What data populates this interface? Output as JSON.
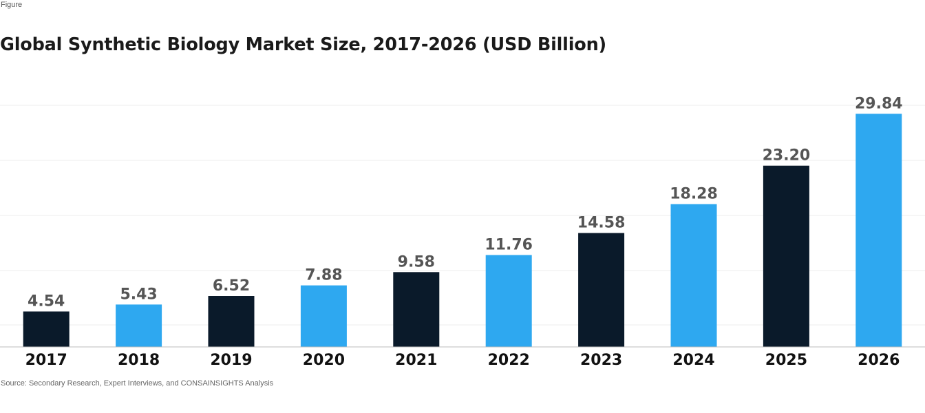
{
  "figure_label": "Figure",
  "source_note": "Source: Secondary Research, Expert Interviews, and CONSAINSIGHTS Analysis",
  "colors": {
    "light_blue": "#2ea8f0",
    "dark_navy": "#0a1a2a",
    "value_label": "#555555",
    "axis_label": "#111111",
    "grid": "#eeeeee",
    "baseline": "#bbbbbb"
  },
  "chart_data": {
    "type": "bar",
    "title": "Global Synthetic Biology Market Size, 2017-2026 (USD Billion)",
    "xlabel": "",
    "ylabel": "",
    "categories": [
      "2017",
      "2018",
      "2019",
      "2020",
      "2021",
      "2022",
      "2023",
      "2024",
      "2025",
      "2026"
    ],
    "values": [
      4.54,
      5.43,
      6.52,
      7.88,
      9.58,
      11.76,
      14.58,
      18.28,
      23.2,
      29.84
    ],
    "value_labels": [
      "4.54",
      "5.43",
      "6.52",
      "7.88",
      "9.58",
      "11.76",
      "14.58",
      "18.28",
      "23.20",
      "29.84"
    ],
    "bar_colors": [
      "dark_navy",
      "light_blue",
      "dark_navy",
      "light_blue",
      "dark_navy",
      "light_blue",
      "dark_navy",
      "light_blue",
      "dark_navy",
      "light_blue"
    ],
    "grid": true,
    "legend": "none"
  }
}
